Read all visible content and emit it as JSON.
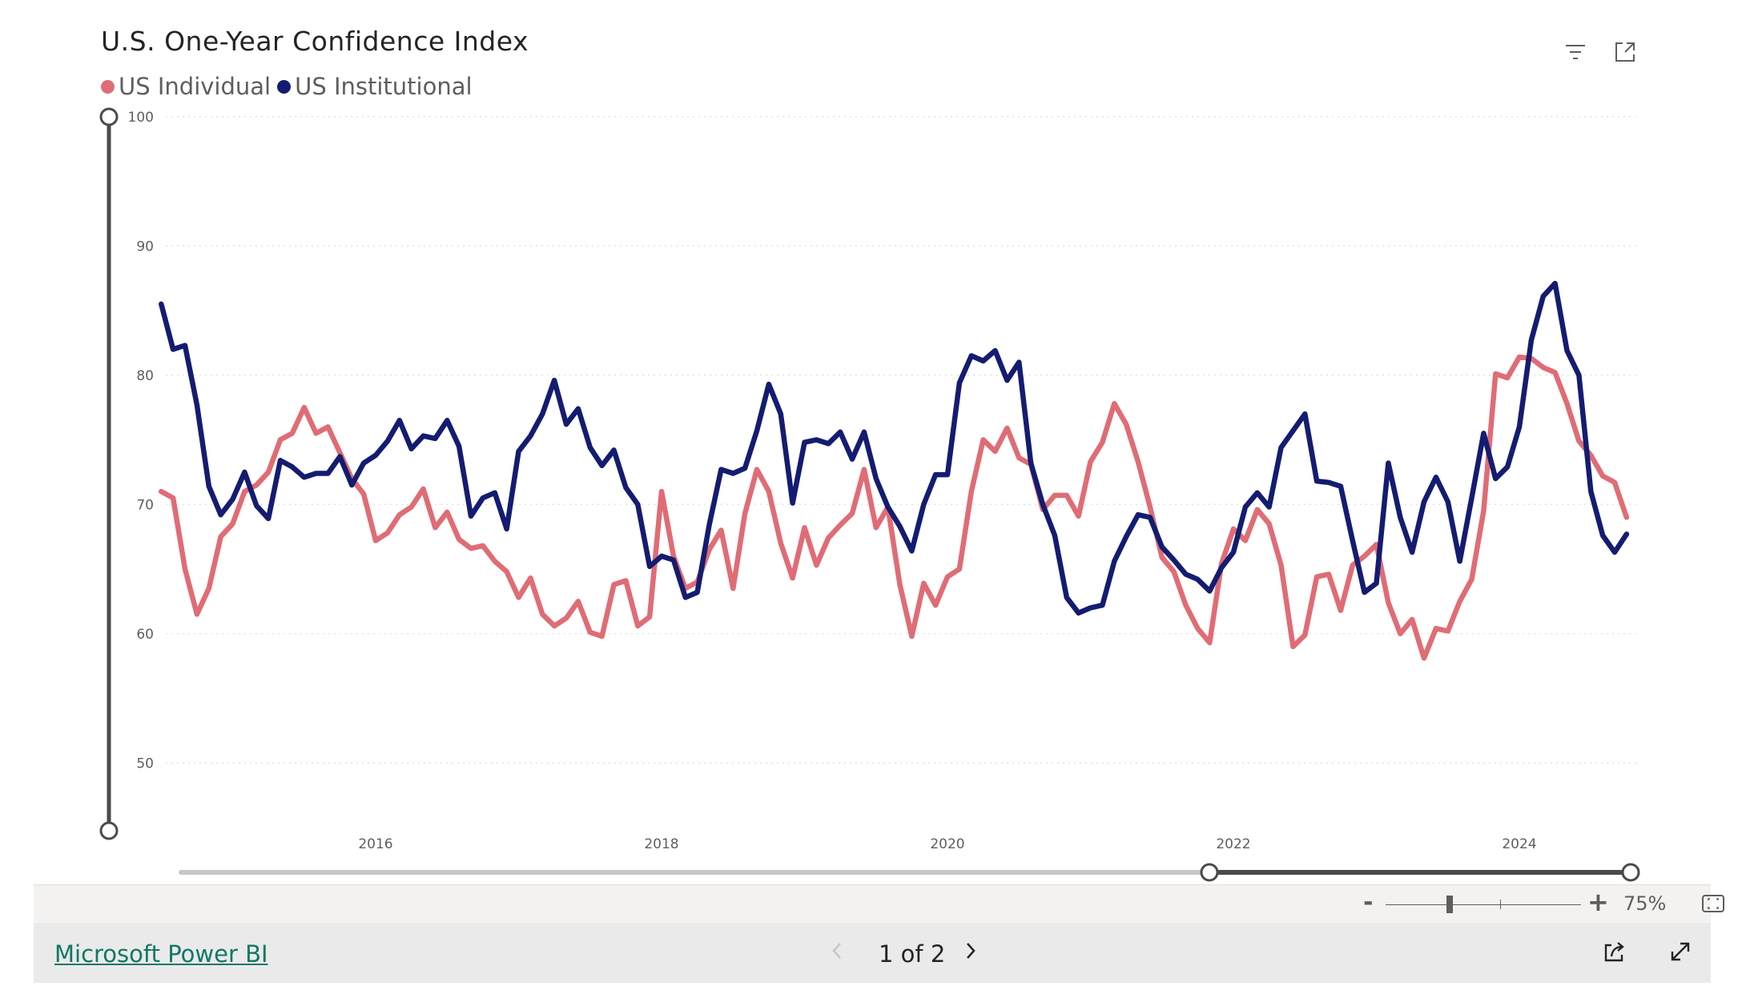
{
  "visual": {
    "title": "U.S. One-Year Confidence Index",
    "filter_icon": "filter-icon",
    "focus_icon": "focus-mode-icon"
  },
  "chart_data": {
    "type": "line",
    "title": "U.S. One-Year Confidence Index",
    "xlabel": "",
    "ylabel": "",
    "ylim": [
      45,
      100
    ],
    "y_ticks": [
      "50",
      "60",
      "70",
      "80",
      "90",
      "100"
    ],
    "x_ticks": [
      "2016",
      "2018",
      "2020",
      "2022",
      "2024"
    ],
    "x_start": "2014-07",
    "x_end": "2024-10",
    "grid": true,
    "legend_position": "top-left",
    "series": [
      {
        "name": "US Individual",
        "color": "#e06c75",
        "values": [
          71.0,
          70.5,
          65.0,
          61.5,
          63.5,
          67.5,
          68.5,
          71.0,
          71.5,
          72.5,
          75.0,
          75.5,
          77.5,
          75.5,
          76.0,
          74.0,
          72.0,
          70.8,
          67.2,
          67.8,
          69.2,
          69.8,
          71.2,
          68.2,
          69.4,
          67.3,
          66.6,
          66.8,
          65.6,
          64.8,
          62.8,
          64.3,
          61.5,
          60.6,
          61.2,
          62.5,
          60.1,
          59.8,
          63.8,
          64.1,
          60.6,
          61.3,
          71.0,
          66.0,
          63.5,
          64.0,
          66.5,
          68.0,
          63.5,
          69.3,
          72.7,
          71.0,
          67.0,
          64.3,
          68.2,
          65.3,
          67.4,
          68.4,
          69.3,
          72.7,
          68.2,
          69.8,
          63.8,
          59.8,
          63.9,
          62.2,
          64.4,
          65.0,
          71.0,
          75.0,
          74.1,
          75.9,
          73.6,
          73.1,
          69.6,
          70.7,
          70.7,
          69.1,
          73.3,
          74.8,
          77.8,
          76.2,
          73.3,
          69.8,
          65.9,
          64.8,
          62.2,
          60.4,
          59.3,
          65.4,
          68.1,
          67.2,
          69.6,
          68.5,
          65.3,
          59.0,
          59.9,
          64.4,
          64.6,
          61.8,
          65.3,
          66.0,
          66.9,
          62.4,
          60.0,
          61.1,
          58.1,
          60.4,
          60.2,
          62.5,
          64.2,
          69.5,
          80.1,
          79.8,
          81.4,
          81.3,
          80.6,
          80.2,
          77.8,
          74.9,
          73.8,
          72.2,
          71.7,
          69.0
        ]
      },
      {
        "name": "US Institutional",
        "color": "#141c71",
        "values": [
          85.5,
          82.0,
          82.3,
          77.7,
          71.4,
          69.2,
          70.4,
          72.5,
          69.9,
          68.9,
          73.4,
          72.9,
          72.1,
          72.4,
          72.4,
          73.7,
          71.5,
          73.2,
          73.8,
          74.9,
          76.5,
          74.3,
          75.3,
          75.1,
          76.5,
          74.5,
          69.1,
          70.5,
          70.9,
          68.1,
          74.1,
          75.3,
          77.0,
          79.6,
          76.2,
          77.4,
          74.4,
          73.0,
          74.2,
          71.3,
          70.0,
          65.2,
          66.0,
          65.7,
          62.8,
          63.2,
          68.4,
          72.7,
          72.4,
          72.8,
          75.7,
          79.3,
          77.0,
          70.1,
          74.8,
          75.0,
          74.7,
          75.6,
          73.5,
          75.6,
          72.0,
          69.8,
          68.3,
          66.4,
          70.0,
          72.3,
          72.3,
          79.4,
          81.5,
          81.1,
          81.9,
          79.6,
          81.0,
          73.2,
          70.0,
          67.6,
          62.8,
          61.6,
          62.0,
          62.2,
          65.6,
          67.5,
          69.2,
          69.0,
          66.7,
          65.7,
          64.6,
          64.2,
          63.3,
          65.1,
          66.3,
          69.8,
          70.9,
          69.8,
          74.4,
          75.7,
          77.0,
          71.8,
          71.7,
          71.4,
          67.2,
          63.2,
          63.9,
          73.2,
          69.0,
          66.3,
          70.2,
          72.1,
          70.2,
          65.6,
          70.5,
          75.5,
          72.0,
          72.9,
          76.0,
          82.7,
          86.1,
          87.1,
          81.9,
          80.0,
          71.0,
          67.6,
          66.3,
          67.7
        ]
      }
    ]
  },
  "zoom": {
    "minus_label": "-",
    "plus_label": "+",
    "level": "75%",
    "fit_icon": "fit-to-page-icon"
  },
  "footer": {
    "brand_link": "Microsoft Power BI",
    "page_indicator": "1 of 2",
    "prev_icon": "chevron-left-icon",
    "next_icon": "chevron-right-icon",
    "share_icon": "share-icon",
    "fullscreen_icon": "fullscreen-icon"
  }
}
